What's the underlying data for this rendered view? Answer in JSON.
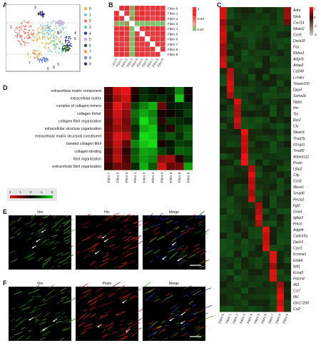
{
  "panels": {
    "A": {
      "letter": "A",
      "cluster_legend": [
        "0",
        "1",
        "2",
        "3",
        "4",
        "5",
        "6",
        "7",
        "8",
        "9"
      ],
      "cluster_colors": [
        "#e8b84a",
        "#7fc9e0",
        "#e57a6c",
        "#59c9b5",
        "#223a8f",
        "#c7a9d9",
        "#2d5a2d",
        "#e6a64e",
        "#6b8fd6",
        "#3b2d7a"
      ],
      "labels_on_map": [
        "9",
        "2",
        "1",
        "0",
        "4",
        "5",
        "3",
        "7",
        "6",
        "8"
      ]
    },
    "B": {
      "letter": "B",
      "row_labels": [
        "Fibro 0",
        "Fibro 1",
        "Fibro 2",
        "Fibro 3",
        "Fibro 4",
        "Fibro 5",
        "Fibro 6",
        "Fibro 7",
        "Fibro 8",
        "Fibro 9"
      ],
      "col_labels": [
        "Fibro 0",
        "Fibro 1",
        "Fibro 2",
        "Fibro 3",
        "Fibro 4",
        "Fibro 5",
        "Fibro 6",
        "Fibro 7",
        "Fibro 8",
        "Fibro 9"
      ],
      "legend_ticks": [
        "1",
        "0.93",
        "0.87"
      ]
    },
    "C": {
      "letter": "C",
      "genes": [
        "Adm",
        "Nmb",
        "Cxcl14",
        "Nkain2",
        "Ccn5",
        "Dock10",
        "Fas",
        "Rbfox1",
        "Adgrl3",
        "Adap2",
        "Cd248",
        "Lrrn4cl",
        "Tmem100",
        "Dpp4",
        "Sema3c",
        "Nppa",
        "Hrc",
        "Ttn",
        "Ryr2",
        "Clu",
        "Nkain3",
        "Thsd7b",
        "Il1rapl1",
        "Tmeff2",
        "Adamts11",
        "Postn",
        "Ltbp2",
        "Cilp",
        "Ccn2",
        "Meox1",
        "Smad6",
        "Piezo2",
        "Fgl2",
        "Gria4",
        "Igfbp3",
        "Prkch",
        "Adgrl4",
        "Cadc65a",
        "Dach1",
        "Cyyr1",
        "Kcnma1",
        "Erbb4",
        "Wif1",
        "Kcnq5",
        "Pdzrn4",
        "Ifit3",
        "Ccl7",
        "Ifit1",
        "Gm17268",
        "Ccl2"
      ],
      "columns": [
        "Fibro 0",
        "Fibro 1",
        "Fibro 2",
        "Fibro 3",
        "Fibro 4",
        "Fibro 5",
        "Fibro 6",
        "Fibro 7",
        "Fibro 8",
        "Fibro 9"
      ],
      "legend_ticks": [
        "1",
        "0",
        "-1",
        "-2"
      ]
    },
    "D": {
      "letter": "D",
      "terms": [
        "extracellular matrix component",
        "extracellular matrix",
        "complex of collagen trimers",
        "collagen trimer",
        "collagen fibril organization",
        "extracellular structure organization",
        "extracellular matrix structural constituent",
        "banded collagen fibril",
        "collagen binding",
        "fibril organization",
        "extracellular fibril organization"
      ],
      "columns": [
        "Fibro 7",
        "Fibro 5",
        "Fibro 3",
        "Fibro 1",
        "Fibro 0",
        "Fibro 2",
        "Fibro 4",
        "Fibro 6",
        "Fibro 8",
        "Fibro 9"
      ],
      "legend_ticks": [
        "2",
        "1",
        "0",
        "-1",
        "-2"
      ]
    },
    "E": {
      "letter": "E",
      "channels": [
        "Vim",
        "Hrc",
        "Merge"
      ]
    },
    "F": {
      "letter": "F",
      "channels": [
        "Vim",
        "Postn",
        "Merge"
      ]
    }
  },
  "chart_data": [
    {
      "type": "heatmap",
      "panel": "B",
      "rows": [
        "Fibro 0",
        "Fibro 1",
        "Fibro 2",
        "Fibro 3",
        "Fibro 4",
        "Fibro 5",
        "Fibro 6",
        "Fibro 7",
        "Fibro 8",
        "Fibro 9"
      ],
      "columns": [
        "Fibro 0",
        "Fibro 1",
        "Fibro 2",
        "Fibro 3",
        "Fibro 4",
        "Fibro 5",
        "Fibro 6",
        "Fibro 7",
        "Fibro 8",
        "Fibro 9"
      ],
      "values": [
        [
          1,
          0.96,
          0.97,
          0.9,
          0.96,
          0.96,
          0.95,
          0.95,
          0.96,
          0.95
        ],
        [
          0.96,
          1,
          0.95,
          0.88,
          0.95,
          0.97,
          0.95,
          0.95,
          0.96,
          0.96
        ],
        [
          0.97,
          0.95,
          1,
          0.91,
          0.96,
          0.95,
          0.96,
          0.94,
          0.95,
          0.95
        ],
        [
          0.9,
          0.88,
          0.91,
          1,
          0.88,
          0.87,
          0.88,
          0.88,
          0.87,
          0.88
        ],
        [
          0.96,
          0.95,
          0.96,
          0.88,
          1,
          0.95,
          0.96,
          0.95,
          0.96,
          0.95
        ],
        [
          0.96,
          0.97,
          0.95,
          0.87,
          0.95,
          1,
          0.95,
          0.95,
          0.95,
          0.96
        ],
        [
          0.95,
          0.95,
          0.96,
          0.88,
          0.96,
          0.95,
          1,
          0.95,
          0.95,
          0.95
        ],
        [
          0.95,
          0.95,
          0.94,
          0.88,
          0.95,
          0.95,
          0.95,
          1,
          0.95,
          0.94
        ],
        [
          0.96,
          0.96,
          0.95,
          0.87,
          0.96,
          0.95,
          0.95,
          0.95,
          1,
          0.95
        ],
        [
          0.95,
          0.96,
          0.95,
          0.88,
          0.95,
          0.96,
          0.95,
          0.94,
          0.95,
          1
        ]
      ],
      "colorbar": {
        "max": 1,
        "mid": 0.93,
        "min": 0.87
      }
    },
    {
      "type": "heatmap",
      "panel": "C",
      "rows_count": 50,
      "columns": [
        "Fibro 0",
        "Fibro 1",
        "Fibro 2",
        "Fibro 3",
        "Fibro 4",
        "Fibro 5",
        "Fibro 6",
        "Fibro 7",
        "Fibro 8",
        "Fibro 9"
      ],
      "row_blocks_by_column": [
        [
          0,
          10
        ],
        [
          10,
          15
        ],
        [
          15,
          20
        ],
        [
          20,
          26
        ],
        [
          26,
          32
        ],
        [
          32,
          36
        ],
        [
          36,
          40
        ],
        [
          40,
          45
        ],
        [
          45,
          50
        ],
        [
          0,
          3
        ]
      ],
      "colorbar": {
        "max": 1,
        "min": -2
      }
    },
    {
      "type": "heatmap",
      "panel": "D",
      "rows": [
        "extracellular matrix component",
        "extracellular matrix",
        "complex of collagen trimers",
        "collagen trimer",
        "collagen fibril organization",
        "extracellular structure organization",
        "extracellular matrix structural constituent",
        "banded collagen fibril",
        "collagen binding",
        "fibril organization",
        "extracellular fibril organization"
      ],
      "columns": [
        "Fibro 7",
        "Fibro 5",
        "Fibro 3",
        "Fibro 1",
        "Fibro 0",
        "Fibro 2",
        "Fibro 4",
        "Fibro 6",
        "Fibro 8",
        "Fibro 9"
      ],
      "values": [
        [
          0.6,
          1.8,
          2.0,
          0.3,
          -0.4,
          -0.2,
          0.1,
          -0.3,
          -1.2,
          0.2
        ],
        [
          0.5,
          1.4,
          1.8,
          0.2,
          -0.5,
          -0.3,
          -0.4,
          -0.2,
          -1.8,
          -0.1
        ],
        [
          0.8,
          2.0,
          1.5,
          -0.6,
          -1.2,
          -1.6,
          0.9,
          -0.2,
          -0.3,
          -0.4
        ],
        [
          0.9,
          1.8,
          1.2,
          -1.0,
          -1.5,
          -1.2,
          0.2,
          0.1,
          -0.2,
          -0.6
        ],
        [
          0.7,
          1.6,
          1.0,
          -0.8,
          -2.0,
          -1.4,
          0.4,
          -0.5,
          -0.4,
          -0.3
        ],
        [
          0.8,
          1.4,
          1.1,
          -0.4,
          -1.6,
          -1.8,
          -0.2,
          0.3,
          -0.6,
          -0.8
        ],
        [
          1.0,
          1.9,
          1.6,
          -0.6,
          -2.0,
          -1.8,
          -0.5,
          -0.8,
          -0.4,
          -0.9
        ],
        [
          0.9,
          1.7,
          0.8,
          -1.2,
          -1.8,
          -2.0,
          0.2,
          -0.2,
          -0.6,
          -0.5
        ],
        [
          0.6,
          1.5,
          0.4,
          -0.8,
          -1.5,
          -1.4,
          -0.6,
          -0.3,
          -0.9,
          -0.8
        ],
        [
          0.7,
          1.6,
          0.6,
          -0.9,
          -1.4,
          -1.2,
          1.2,
          1.4,
          0.3,
          -0.6
        ],
        [
          0.5,
          1.0,
          0.8,
          -0.4,
          -1.6,
          -0.8,
          1.8,
          0.9,
          1.0,
          -1.5
        ]
      ],
      "colorbar": {
        "max": 2,
        "min": -2
      }
    }
  ]
}
